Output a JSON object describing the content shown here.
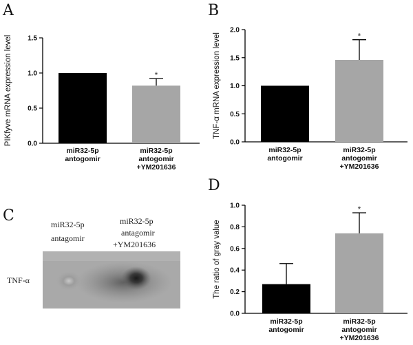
{
  "panels": {
    "a": "A",
    "b": "B",
    "c": "C",
    "d": "D"
  },
  "blot": {
    "lane1": [
      "miR32-5p",
      "antagomir"
    ],
    "lane2": [
      "miR32-5p",
      "antagomir",
      "+YM201636"
    ],
    "row_label": "TNF-α"
  },
  "colors": {
    "control_bar": "#000000",
    "treated_bar": "#a6a6a6"
  },
  "chart_data": [
    {
      "id": "A",
      "type": "bar",
      "ylabel": "PIKfyve mRNA expression level",
      "categories": [
        [
          "miR32-5p",
          "antogomir"
        ],
        [
          "miR32-5p",
          "antogomir",
          "+YM201636"
        ]
      ],
      "values": [
        1.0,
        0.82
      ],
      "errors": [
        0,
        0.1
      ],
      "significance": [
        "",
        "*"
      ],
      "ylim": [
        0,
        1.5
      ],
      "yticks": [
        "0.0",
        "0.5",
        "1.0",
        "1.5"
      ]
    },
    {
      "id": "B",
      "type": "bar",
      "ylabel": "TNF-α mRNA expression level",
      "categories": [
        [
          "miR32-5p",
          "antogomir"
        ],
        [
          "miR32-5p",
          "antogomir",
          "+YM201636"
        ]
      ],
      "values": [
        1.0,
        1.46
      ],
      "errors": [
        0,
        0.36
      ],
      "significance": [
        "",
        "*"
      ],
      "ylim": [
        0,
        2.0
      ],
      "yticks": [
        "0.0",
        "0.5",
        "1.0",
        "1.5",
        "2.0"
      ]
    },
    {
      "id": "D",
      "type": "bar",
      "ylabel": "The ratio of gray value",
      "categories": [
        [
          "miR32-5p",
          "antogomir"
        ],
        [
          "miR32-5p",
          "antogomir",
          "+YM201636"
        ]
      ],
      "values": [
        0.27,
        0.74
      ],
      "errors": [
        0.19,
        0.19
      ],
      "significance": [
        "",
        "*"
      ],
      "ylim": [
        0,
        1.0
      ],
      "yticks": [
        "0.0",
        "0.2",
        "0.4",
        "0.6",
        "0.8",
        "1.0"
      ]
    }
  ]
}
